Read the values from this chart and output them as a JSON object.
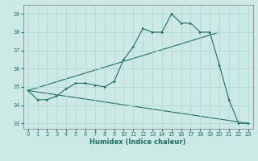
{
  "title": "",
  "xlabel": "Humidex (Indice chaleur)",
  "bg_color": "#cce9e5",
  "grid_color": "#b0d8d4",
  "line_color": "#1e6e62",
  "xlim": [
    -0.5,
    23.5
  ],
  "ylim": [
    32.7,
    39.5
  ],
  "yticks": [
    33,
    34,
    35,
    36,
    37,
    38,
    39
  ],
  "xtick_labels": [
    "0",
    "1",
    "2",
    "3",
    "4",
    "5",
    "6",
    "7",
    "8",
    "9",
    "10",
    "11",
    "12",
    "13",
    "14",
    "15",
    "16",
    "17",
    "18",
    "19",
    "20",
    "21",
    "22",
    "23"
  ],
  "curve1_x": [
    0,
    1,
    2,
    3,
    4,
    5,
    6,
    7,
    8,
    9,
    10,
    11,
    12,
    13,
    14,
    15,
    16,
    17,
    18,
    19,
    20,
    21,
    22,
    23
  ],
  "curve1_y": [
    34.8,
    34.3,
    34.3,
    34.5,
    34.9,
    35.2,
    35.2,
    35.1,
    35.0,
    35.3,
    36.5,
    37.2,
    38.2,
    38.0,
    38.0,
    39.0,
    38.5,
    38.5,
    38.0,
    38.0,
    36.2,
    34.3,
    33.0,
    33.0
  ],
  "curve2_x": [
    0,
    20
  ],
  "curve2_y": [
    34.8,
    38.0
  ],
  "curve3_x": [
    0,
    23
  ],
  "curve3_y": [
    34.8,
    33.0
  ],
  "label_fontsize": 5.5,
  "xlabel_fontsize": 6.0,
  "tick_fontsize": 4.8
}
